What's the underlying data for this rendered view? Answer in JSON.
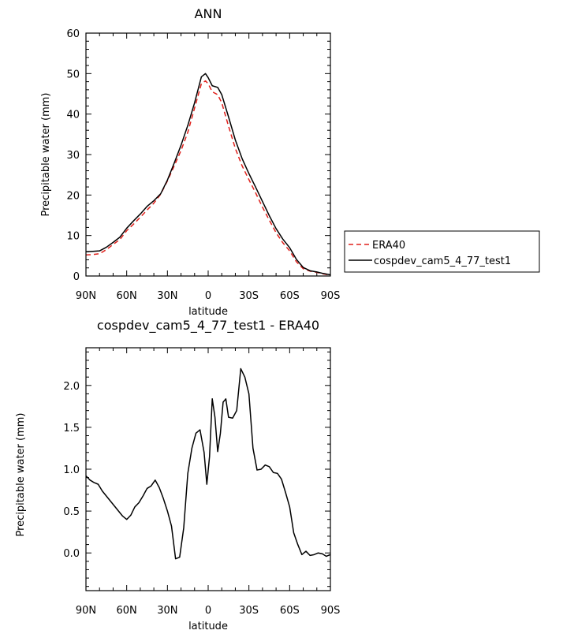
{
  "chart_data": [
    {
      "type": "line",
      "title": "ANN",
      "xlabel": "latitude",
      "ylabel": "Precipitable water (mm)",
      "xlim": [
        -90,
        90
      ],
      "ylim": [
        0,
        60
      ],
      "x_ticks": [
        -90,
        -60,
        -30,
        0,
        30,
        60,
        90
      ],
      "x_tick_labels": [
        "90N",
        "60N",
        "30N",
        "0",
        "30S",
        "60S",
        "90S"
      ],
      "y_ticks": [
        0,
        10,
        20,
        30,
        40,
        50,
        60
      ],
      "y_tick_labels": [
        "0",
        "10",
        "20",
        "30",
        "40",
        "50",
        "60"
      ],
      "legend_position": "right",
      "series": [
        {
          "name": "ERA40",
          "color": "#e0201b",
          "dash": "dashed",
          "x": [
            -90,
            -85,
            -80,
            -75,
            -70,
            -65,
            -60,
            -55,
            -50,
            -45,
            -40,
            -35,
            -30,
            -25,
            -20,
            -15,
            -10,
            -5,
            -2,
            0,
            3,
            7,
            10,
            15,
            20,
            25,
            30,
            35,
            40,
            45,
            50,
            55,
            60,
            65,
            70,
            75,
            80,
            85,
            90
          ],
          "y": [
            5.2,
            5.3,
            5.5,
            6.5,
            7.8,
            9.0,
            11.2,
            12.8,
            14.5,
            16.3,
            18.0,
            20.2,
            23.5,
            27.2,
            31.0,
            35.5,
            41.5,
            47.5,
            48.2,
            47.5,
            45.5,
            44.8,
            42.8,
            37.0,
            31.5,
            27.2,
            23.8,
            20.5,
            17.0,
            13.8,
            10.7,
            8.2,
            6.2,
            3.5,
            1.8,
            1.2,
            0.9,
            0.5,
            0.2
          ]
        },
        {
          "name": "cospdev_cam5_4_77_test1",
          "color": "#000000",
          "dash": "solid",
          "x": [
            -90,
            -85,
            -80,
            -75,
            -70,
            -65,
            -60,
            -55,
            -50,
            -45,
            -40,
            -35,
            -30,
            -25,
            -20,
            -15,
            -10,
            -5,
            -2,
            0,
            3,
            7,
            10,
            15,
            20,
            25,
            30,
            35,
            40,
            45,
            50,
            55,
            60,
            65,
            70,
            75,
            80,
            85,
            90
          ],
          "y": [
            6.0,
            6.1,
            6.2,
            7.1,
            8.3,
            9.6,
            11.8,
            13.6,
            15.3,
            17.2,
            18.6,
            20.3,
            23.7,
            27.9,
            32.3,
            37.2,
            42.8,
            49.2,
            50.0,
            49.0,
            47.0,
            46.6,
            44.8,
            39.3,
            33.6,
            29.0,
            25.3,
            21.9,
            18.4,
            14.9,
            11.7,
            9.1,
            7.0,
            4.1,
            2.1,
            1.3,
            1.0,
            0.6,
            0.3
          ]
        }
      ]
    },
    {
      "type": "line",
      "title": "cospdev_cam5_4_77_test1 - ERA40",
      "xlabel": "latitude",
      "ylabel": "Precipitable water (mm)",
      "xlim": [
        -90,
        90
      ],
      "ylim": [
        -0.45,
        2.45
      ],
      "x_ticks": [
        -90,
        -60,
        -30,
        0,
        30,
        60,
        90
      ],
      "x_tick_labels": [
        "90N",
        "60N",
        "30N",
        "0",
        "30S",
        "60S",
        "90S"
      ],
      "y_ticks": [
        0.0,
        0.5,
        1.0,
        1.5,
        2.0
      ],
      "y_tick_labels": [
        "0.0",
        "0.5",
        "1.0",
        "1.5",
        "2.0"
      ],
      "series": [
        {
          "color": "#000000",
          "dash": "solid",
          "x": [
            -90,
            -87,
            -84,
            -81,
            -78,
            -75,
            -72,
            -69,
            -66,
            -63,
            -60,
            -57,
            -54,
            -51,
            -48,
            -45,
            -42,
            -39,
            -36,
            -33,
            -30,
            -27,
            -24,
            -21,
            -18,
            -15,
            -12,
            -9,
            -6,
            -3,
            -1,
            1,
            3,
            5,
            7,
            9,
            11,
            13,
            15,
            18,
            21,
            24,
            27,
            30,
            33,
            36,
            39,
            42,
            45,
            48,
            51,
            54,
            57,
            60,
            63,
            66,
            69,
            72,
            75,
            78,
            81,
            84,
            87,
            90
          ],
          "y": [
            0.92,
            0.87,
            0.84,
            0.82,
            0.74,
            0.68,
            0.62,
            0.56,
            0.5,
            0.44,
            0.4,
            0.45,
            0.55,
            0.6,
            0.68,
            0.77,
            0.8,
            0.87,
            0.78,
            0.65,
            0.5,
            0.32,
            -0.07,
            -0.05,
            0.3,
            0.95,
            1.25,
            1.43,
            1.47,
            1.2,
            0.82,
            1.15,
            1.84,
            1.62,
            1.21,
            1.43,
            1.8,
            1.84,
            1.62,
            1.61,
            1.7,
            2.2,
            2.1,
            1.9,
            1.25,
            0.99,
            1.0,
            1.05,
            1.03,
            0.96,
            0.95,
            0.88,
            0.72,
            0.55,
            0.24,
            0.1,
            -0.02,
            0.02,
            -0.03,
            -0.02,
            0.0,
            -0.01,
            -0.04,
            -0.02
          ]
        }
      ]
    }
  ]
}
